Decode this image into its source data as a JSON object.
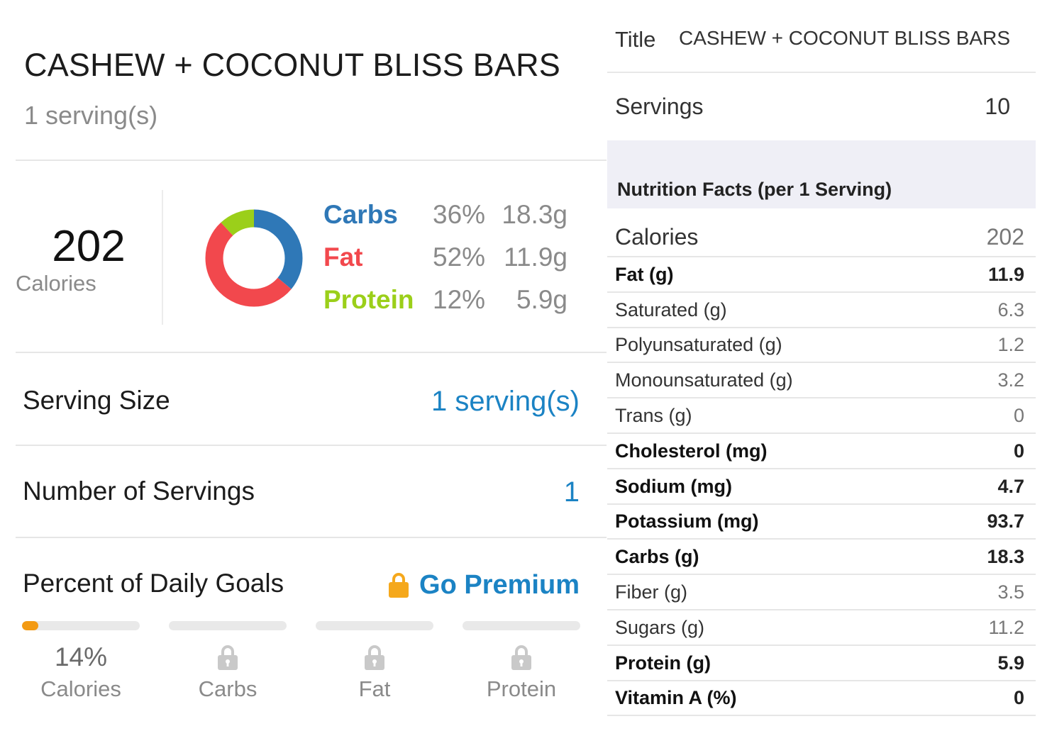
{
  "recipe": {
    "title": "CASHEW + COCONUT BLISS BARS",
    "servings_text": "1 serving(s)"
  },
  "calories": {
    "value": "202",
    "label": "Calories"
  },
  "macros": [
    {
      "name": "Carbs",
      "percent": "36%",
      "grams": "18.3g",
      "color": "#2f78b7",
      "fraction": 0.36
    },
    {
      "name": "Fat",
      "percent": "52%",
      "grams": "11.9g",
      "color": "#f2484d",
      "fraction": 0.52
    },
    {
      "name": "Protein",
      "percent": "12%",
      "grams": "5.9g",
      "color": "#9bcf1a",
      "fraction": 0.12
    }
  ],
  "serving_size": {
    "label": "Serving Size",
    "value": "1 serving(s)"
  },
  "number_of_servings": {
    "label": "Number of Servings",
    "value": "1"
  },
  "daily_goals": {
    "title": "Percent of Daily Goals",
    "premium_label": "Go Premium",
    "premium_icon": "lock-icon",
    "accent_color": "#f39a13",
    "items": [
      {
        "label": "Calories",
        "value": "14%",
        "fraction": 0.14,
        "locked": false
      },
      {
        "label": "Carbs",
        "value": "",
        "fraction": 0,
        "locked": true
      },
      {
        "label": "Fat",
        "value": "",
        "fraction": 0,
        "locked": true
      },
      {
        "label": "Protein",
        "value": "",
        "fraction": 0,
        "locked": true
      }
    ]
  },
  "details": {
    "title_label": "Title",
    "title_value": "CASHEW + COCONUT BLISS BARS",
    "servings_label": "Servings",
    "servings_value": "10",
    "nutrition_header": "Nutrition Facts (per 1 Serving)",
    "facts": [
      {
        "name": "Calories",
        "value": "202",
        "style": "big"
      },
      {
        "name": "Fat (g)",
        "value": "11.9",
        "style": "bold"
      },
      {
        "name": "Saturated (g)",
        "value": "6.3",
        "style": "normal"
      },
      {
        "name": "Polyunsaturated (g)",
        "value": "1.2",
        "style": "normal"
      },
      {
        "name": "Monounsaturated (g)",
        "value": "3.2",
        "style": "normal"
      },
      {
        "name": "Trans (g)",
        "value": "0",
        "style": "normal"
      },
      {
        "name": "Cholesterol (mg)",
        "value": "0",
        "style": "bold"
      },
      {
        "name": "Sodium (mg)",
        "value": "4.7",
        "style": "bold"
      },
      {
        "name": "Potassium (mg)",
        "value": "93.7",
        "style": "bold"
      },
      {
        "name": "Carbs (g)",
        "value": "18.3",
        "style": "bold"
      },
      {
        "name": "Fiber (g)",
        "value": "3.5",
        "style": "normal"
      },
      {
        "name": "Sugars (g)",
        "value": "11.2",
        "style": "normal"
      },
      {
        "name": "Protein (g)",
        "value": "5.9",
        "style": "bold"
      },
      {
        "name": "Vitamin A (%)",
        "value": "0",
        "style": "bold"
      }
    ]
  }
}
